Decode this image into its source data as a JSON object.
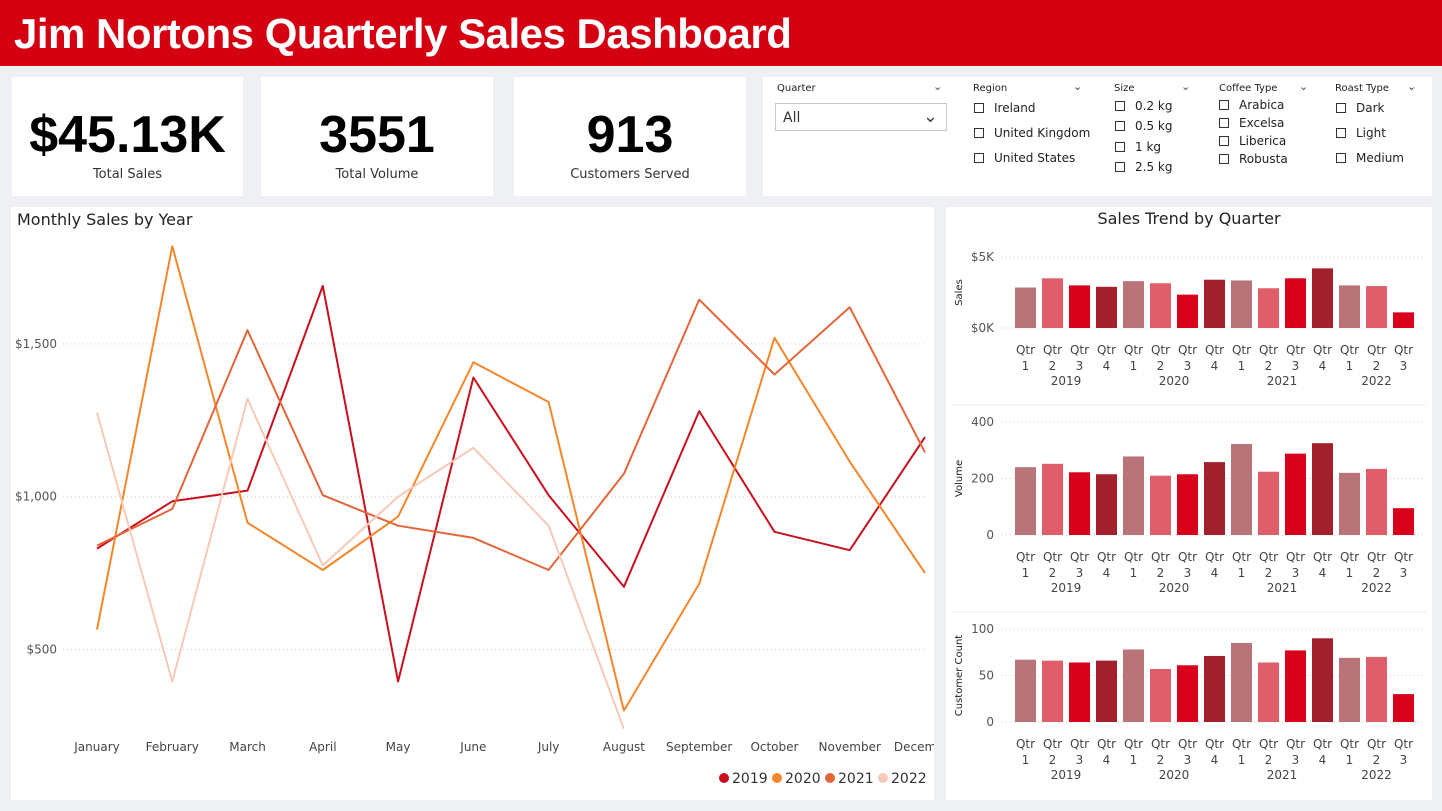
{
  "header": {
    "title": "Jim Nortons Quarterly Sales Dashboard"
  },
  "kpis": [
    {
      "value": "$45.13K",
      "label": "Total Sales"
    },
    {
      "value": "3551",
      "label": "Total Volume"
    },
    {
      "value": "913",
      "label": "Customers Served"
    }
  ],
  "slicers": {
    "quarter": {
      "title": "Quarter",
      "selected": "All"
    },
    "region": {
      "title": "Region",
      "options": [
        "Ireland",
        "United Kingdom",
        "United States"
      ]
    },
    "size": {
      "title": "Size",
      "options": [
        "0.2 kg",
        "0.5 kg",
        "1 kg",
        "2.5 kg"
      ]
    },
    "coffee_type": {
      "title": "Coffee Type",
      "options": [
        "Arabica",
        "Excelsa",
        "Liberica",
        "Robusta"
      ]
    },
    "roast_type": {
      "title": "Roast Type",
      "options": [
        "Dark",
        "Light",
        "Medium"
      ]
    }
  },
  "colors": {
    "brand": "#d40012",
    "line_2019": "#c8101e",
    "line_2020": "#f5872a",
    "line_2021": "#e2663a",
    "line_2022": "#f7c9b6",
    "bar_palette": [
      "#b87478",
      "#de5f6a",
      "#d8001a",
      "#a21f2c"
    ]
  },
  "chart_data": [
    {
      "type": "line",
      "title": "Monthly Sales by Year",
      "categories": [
        "January",
        "February",
        "March",
        "April",
        "May",
        "June",
        "July",
        "August",
        "September",
        "October",
        "November",
        "December"
      ],
      "series": [
        {
          "name": "2019",
          "values": [
            830,
            985,
            1020,
            1690,
            395,
            1390,
            1005,
            705,
            1280,
            885,
            825,
            1195
          ]
        },
        {
          "name": "2020",
          "values": [
            565,
            1820,
            915,
            760,
            935,
            1440,
            1310,
            300,
            715,
            1520,
            1115,
            750
          ]
        },
        {
          "name": "2021",
          "values": [
            840,
            960,
            1545,
            1005,
            905,
            865,
            760,
            1075,
            1645,
            1400,
            1620,
            1145
          ]
        },
        {
          "name": "2022",
          "values": [
            1275,
            395,
            1320,
            775,
            1000,
            1160,
            905,
            240,
            null,
            null,
            null,
            null
          ]
        }
      ],
      "yticks": [
        "$500",
        "$1,000",
        "$1,500"
      ],
      "ytick_values": [
        500,
        1000,
        1500
      ],
      "ylim": [
        220,
        1850
      ],
      "legend": "bottom-right",
      "grid": true
    },
    {
      "type": "bar",
      "title": "Sales Trend by Quarter",
      "panels": [
        {
          "ylabel": "Sales",
          "yticks": [
            "$0K",
            "$5K"
          ],
          "ytick_values": [
            0,
            5000
          ],
          "ylim": [
            0,
            5000
          ],
          "values": [
            2850,
            3500,
            3000,
            2900,
            3300,
            3150,
            2350,
            3400,
            3350,
            2800,
            3500,
            4200,
            3000,
            2950,
            1100
          ]
        },
        {
          "ylabel": "Volume",
          "yticks": [
            "0",
            "200",
            "400"
          ],
          "ytick_values": [
            0,
            200,
            400
          ],
          "ylim": [
            0,
            400
          ],
          "values": [
            240,
            252,
            222,
            215,
            278,
            210,
            215,
            258,
            322,
            224,
            288,
            325,
            220,
            234,
            95
          ]
        },
        {
          "ylabel": "Customer Count",
          "yticks": [
            "0",
            "50",
            "100"
          ],
          "ytick_values": [
            0,
            50,
            100
          ],
          "ylim": [
            0,
            100
          ],
          "values": [
            67,
            66,
            64,
            66,
            78,
            57,
            61,
            71,
            85,
            64,
            77,
            90,
            69,
            70,
            30
          ]
        }
      ],
      "quarters": [
        "Qtr 1",
        "Qtr 2",
        "Qtr 3",
        "Qtr 4",
        "Qtr 1",
        "Qtr 2",
        "Qtr 3",
        "Qtr 4",
        "Qtr 1",
        "Qtr 2",
        "Qtr 3",
        "Qtr 4",
        "Qtr 1",
        "Qtr 2",
        "Qtr 3"
      ],
      "years": [
        {
          "label": "2019",
          "start": 0,
          "count": 4
        },
        {
          "label": "2020",
          "start": 4,
          "count": 4
        },
        {
          "label": "2021",
          "start": 8,
          "count": 4
        },
        {
          "label": "2022",
          "start": 12,
          "count": 3
        }
      ]
    }
  ]
}
